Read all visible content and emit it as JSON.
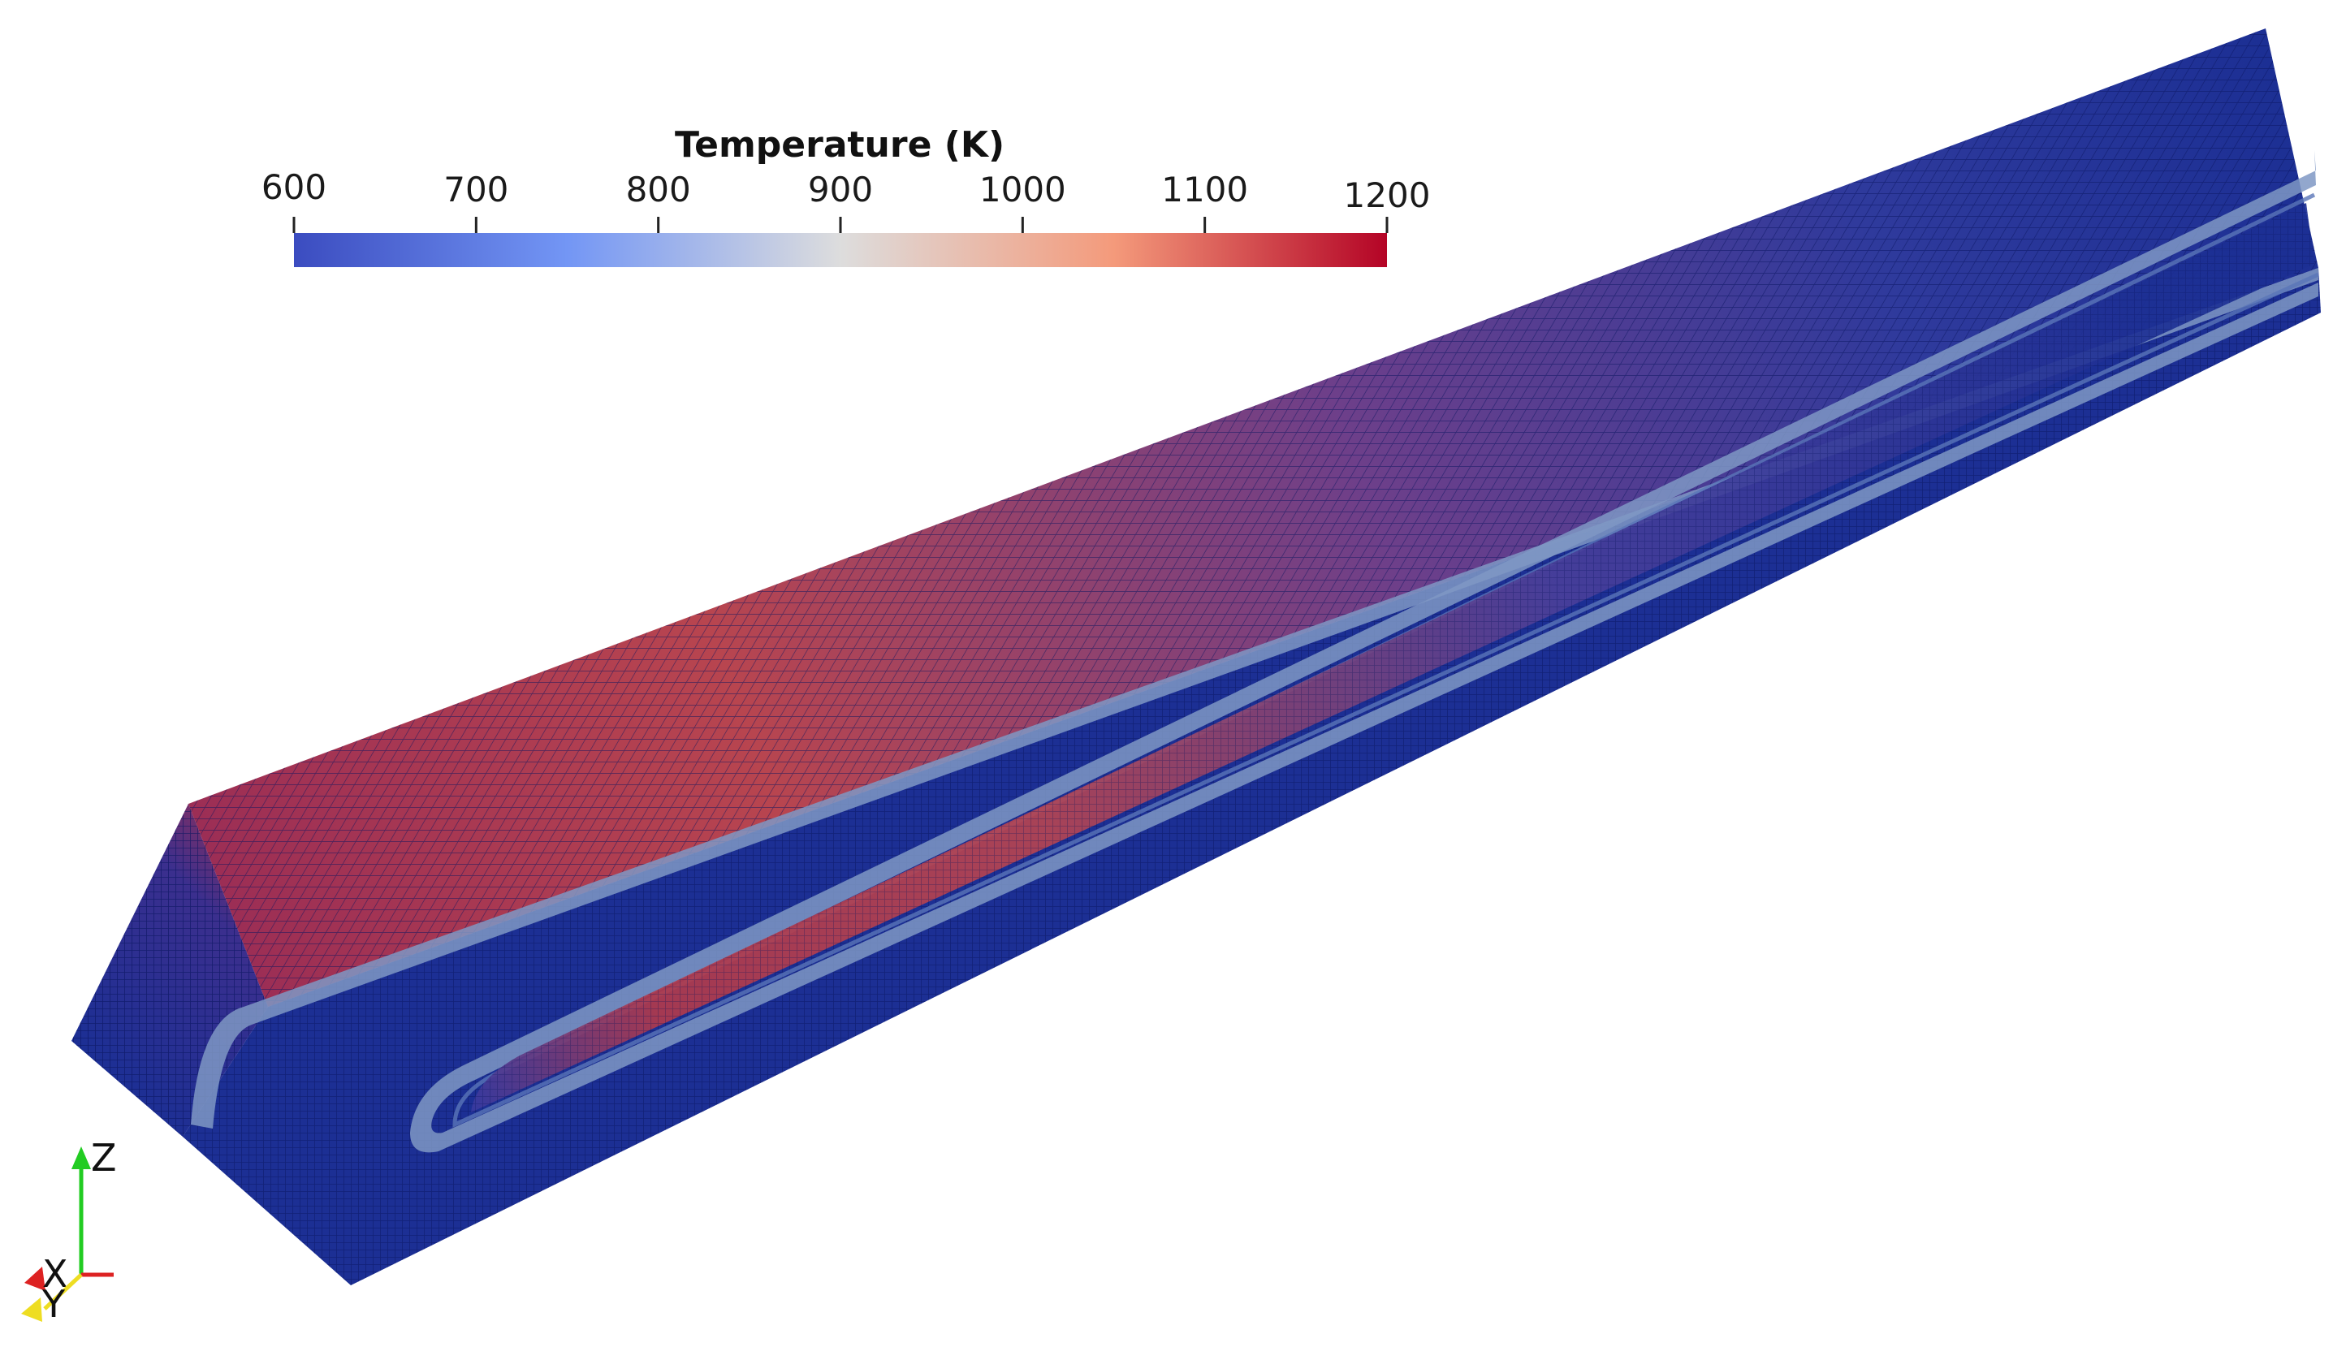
{
  "colorbar": {
    "title": "Temperature (K)",
    "min": 600,
    "max": 1200,
    "ticks": [
      {
        "value": 600,
        "label": "600"
      },
      {
        "value": 700,
        "label": "700"
      },
      {
        "value": 800,
        "label": "800"
      },
      {
        "value": 900,
        "label": "900"
      },
      {
        "value": 1000,
        "label": "1000"
      },
      {
        "value": 1100,
        "label": "1100"
      },
      {
        "value": 1200,
        "label": "1200"
      }
    ],
    "colors": {
      "low": "#3b4cc0",
      "mid": "#dddddd",
      "high": "#b40426"
    }
  },
  "axes": {
    "z_label": "Z",
    "x_label": "X",
    "y_label": "Y",
    "colors": {
      "z": "#22cc22",
      "x": "#dd2222",
      "y": "#eedd22"
    }
  },
  "mesh_colors": {
    "cold": "#1c2f94",
    "hot": "#b33a4a",
    "cladding": "#7f98c4",
    "grid_line": "#0a1560"
  }
}
